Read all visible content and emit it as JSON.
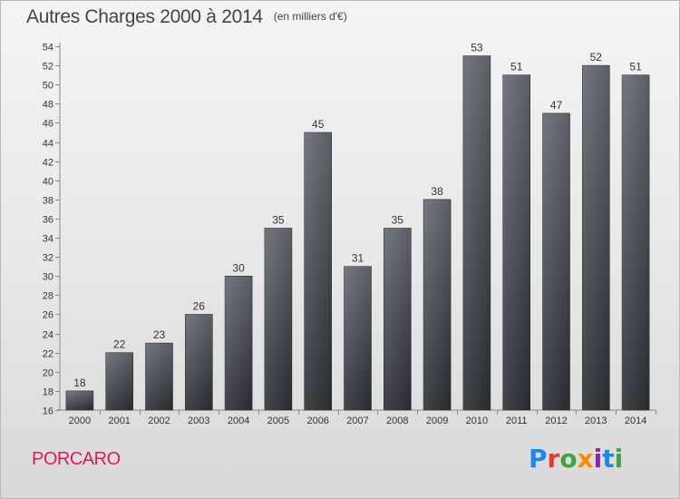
{
  "chart_data": {
    "type": "bar",
    "title": "Autres Charges 2000 à 2014",
    "subtitle": "(en milliers d'€)",
    "categories": [
      "2000",
      "2001",
      "2002",
      "2003",
      "2004",
      "2005",
      "2006",
      "2007",
      "2008",
      "2009",
      "2010",
      "2011",
      "2012",
      "2013",
      "2014"
    ],
    "values": [
      18,
      22,
      23,
      26,
      30,
      35,
      45,
      31,
      35,
      38,
      53,
      51,
      47,
      52,
      51
    ],
    "data_labels": [
      "18",
      "22",
      "23",
      "26",
      "30",
      "35",
      "45",
      "31",
      "35",
      "38",
      "53",
      "51",
      "47",
      "52",
      "51"
    ],
    "ylim": [
      16,
      54
    ],
    "yticks": [
      "16",
      "18",
      "20",
      "22",
      "24",
      "26",
      "28",
      "30",
      "32",
      "34",
      "36",
      "38",
      "40",
      "42",
      "44",
      "46",
      "48",
      "50",
      "52",
      "54"
    ],
    "grid": false,
    "bar_color": "#3e4249"
  },
  "place": "PORCARO",
  "brand": {
    "name": "Proxiti",
    "letters": [
      {
        "ch": "P",
        "color": "#1e88e5"
      },
      {
        "ch": "r",
        "color": "#e53935"
      },
      {
        "ch": "o",
        "color": "#43a047"
      },
      {
        "ch": "x",
        "color": "#fb8c00"
      },
      {
        "ch": "i",
        "color": "#8e24aa"
      },
      {
        "ch": "t",
        "color": "#1e88e5"
      },
      {
        "ch": "i",
        "color": "#43a047"
      }
    ]
  }
}
